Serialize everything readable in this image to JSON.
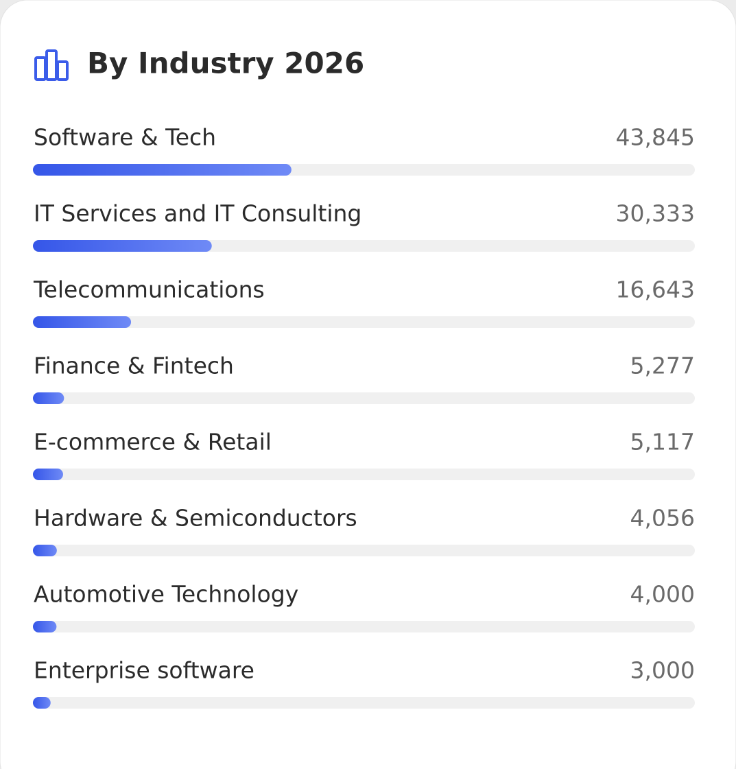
{
  "chart_data": {
    "type": "bar",
    "orientation": "horizontal",
    "title": "By Industry 2026",
    "categories": [
      "Software & Tech",
      "IT Services and IT Consulting",
      "Telecommunications",
      "Finance & Fintech",
      "E-commerce & Retail",
      "Hardware & Semiconductors",
      "Automotive Technology",
      "Enterprise software"
    ],
    "values": [
      43845,
      30333,
      16643,
      5277,
      5117,
      4056,
      4000,
      3000
    ],
    "value_labels": [
      "43,845",
      "30,333",
      "16,643",
      "5,277",
      "5,117",
      "4,056",
      "4,000",
      "3,000"
    ],
    "color": "#4a6cf0"
  }
}
